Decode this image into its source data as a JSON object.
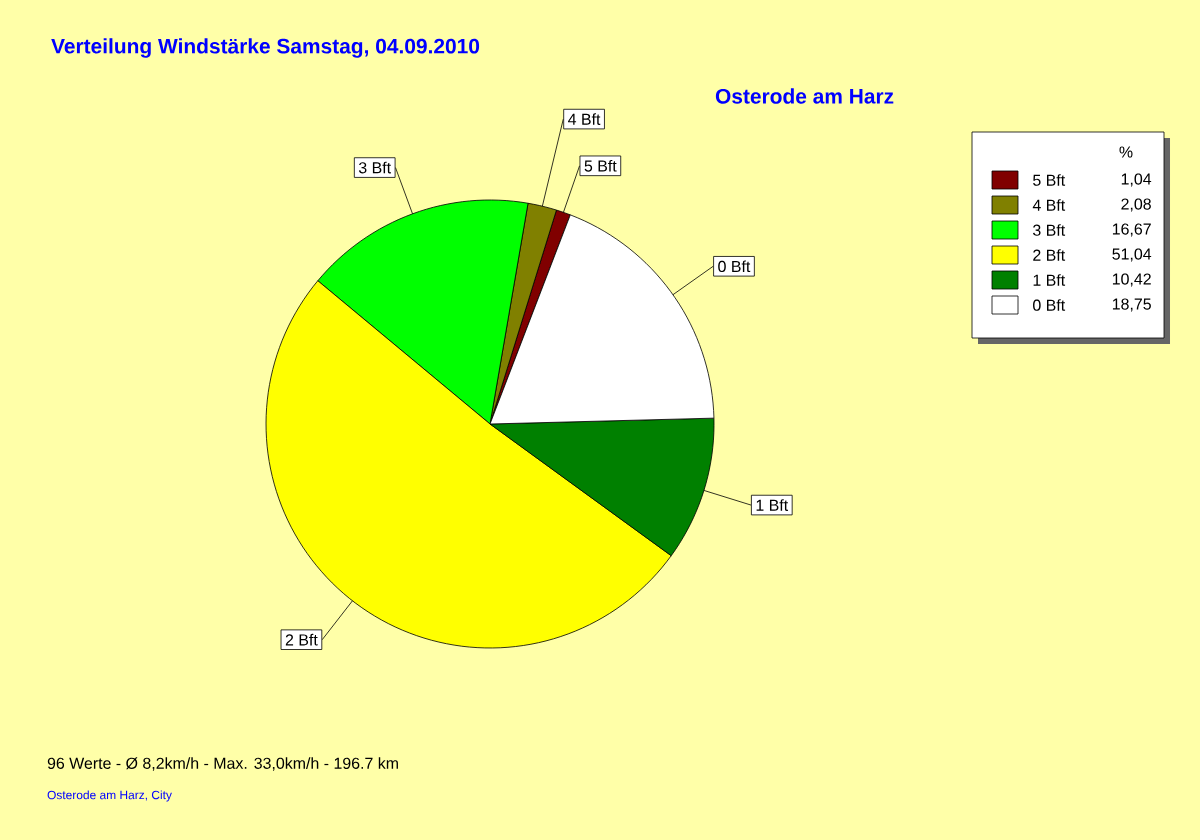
{
  "chart_data": {
    "type": "pie",
    "title": "Verteilung Windstärke  Samstag, 04.09.2010",
    "subtitle": "Osterode am Harz",
    "legend_title": "%",
    "categories": [
      "5 Bft",
      "4 Bft",
      "3 Bft",
      "2 Bft",
      "1 Bft",
      "0 Bft"
    ],
    "values": [
      1.04,
      2.08,
      16.67,
      51.04,
      10.42,
      18.75
    ],
    "value_labels": [
      "1,04",
      "2,08",
      "16,67",
      "51,04",
      "10,42",
      "18,75"
    ],
    "colors": [
      "#800000",
      "#808000",
      "#00ff00",
      "#ffff00",
      "#008000",
      "#ffffff"
    ],
    "legend": "top right",
    "annotations": [
      "96 Werte   -   Ø 8,2km/h  -  Max. 33,0km/h   -   196.7 km",
      "Osterode am Harz, City"
    ]
  }
}
